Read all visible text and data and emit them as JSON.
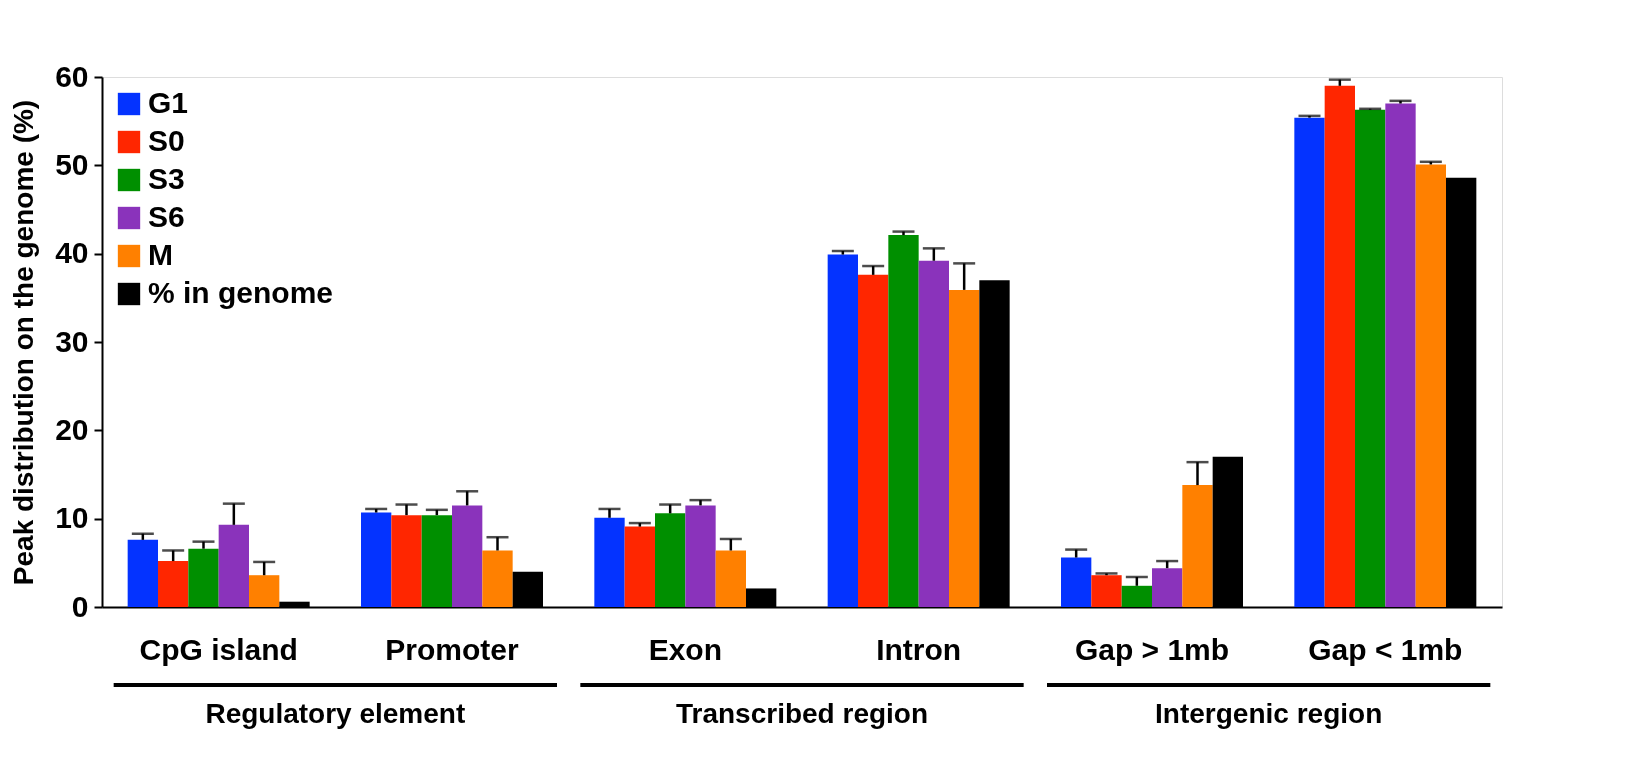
{
  "chart_data": {
    "type": "bar",
    "ylabel": "Peak distribution on the genome (%)",
    "categories": [
      "CpG island",
      "Promoter",
      "Exon",
      "Intron",
      "Gap > 1mb",
      "Gap < 1mb"
    ],
    "ylim": [
      0,
      60
    ],
    "yticks": [
      0,
      10,
      20,
      30,
      40,
      50,
      60
    ],
    "grid": false,
    "legend": "top left",
    "series": [
      {
        "name": "G1",
        "color": "#0433ff",
        "values": [
          7.6,
          10.7,
          10.1,
          39.9,
          5.6,
          55.4
        ],
        "errors": [
          0.7,
          0.4,
          1.0,
          0.4,
          0.9,
          0.2
        ]
      },
      {
        "name": "S0",
        "color": "#ff2600",
        "values": [
          5.2,
          10.4,
          9.1,
          37.6,
          3.6,
          59.0
        ],
        "errors": [
          1.2,
          1.2,
          0.4,
          1.0,
          0.2,
          0.7
        ]
      },
      {
        "name": "S3",
        "color": "#008f00",
        "values": [
          6.6,
          10.4,
          10.6,
          42.1,
          2.4,
          56.3
        ],
        "errors": [
          0.8,
          0.6,
          1.0,
          0.4,
          1.0,
          0.1
        ]
      },
      {
        "name": "S6",
        "color": "#8a33bb",
        "values": [
          9.3,
          11.5,
          11.5,
          39.2,
          4.4,
          57.0
        ],
        "errors": [
          2.4,
          1.6,
          0.6,
          1.4,
          0.8,
          0.3
        ]
      },
      {
        "name": "M",
        "color": "#ff8000",
        "values": [
          3.6,
          6.4,
          6.4,
          35.9,
          13.8,
          50.1
        ],
        "errors": [
          1.5,
          1.5,
          1.3,
          3.0,
          2.6,
          0.3
        ]
      },
      {
        "name": "% in genome",
        "color": "#000000",
        "values": [
          0.6,
          4.0,
          2.1,
          37.0,
          17.0,
          48.6
        ],
        "errors": [
          null,
          null,
          null,
          null,
          null,
          null
        ]
      }
    ],
    "annotations": [
      "Regulatory element",
      "Transcribed region",
      "Intergenic region"
    ]
  }
}
